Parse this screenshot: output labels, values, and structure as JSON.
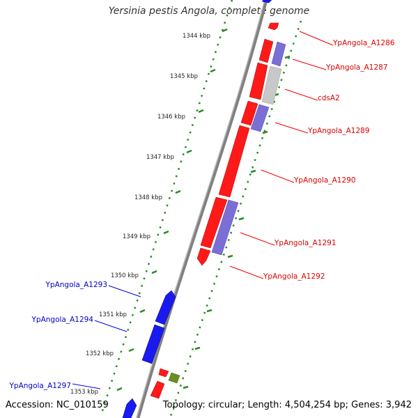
{
  "header": {
    "title": "Yersinia pestis Angola, complete genome"
  },
  "footer": {
    "accession": "Accession: NC_010159",
    "topology": "Topology: circular; Length: 4,504,254 bp; Genes: 3,942"
  },
  "colors": {
    "forward_gene": "#ff1a1a",
    "reverse_gene": "#1a1aee",
    "forward_label": "#dd0000",
    "reverse_label": "#0000cc",
    "cds_purple": "#7b6fd6",
    "pseudo_gray": "#c8c8c8",
    "rna_olive": "#6b8e23",
    "backbone": "#808080",
    "tick": "#228b22"
  },
  "scale": {
    "unit": "kbp",
    "ticks": [
      {
        "label": "1344 kbp"
      },
      {
        "label": "1345 kbp"
      },
      {
        "label": "1346 kbp"
      },
      {
        "label": "1347 kbp"
      },
      {
        "label": "1348 kbp"
      },
      {
        "label": "1349 kbp"
      },
      {
        "label": "1350 kbp"
      },
      {
        "label": "1351 kbp"
      },
      {
        "label": "1352 kbp"
      },
      {
        "label": "1353 kbp"
      }
    ]
  },
  "forward_labels": [
    {
      "text": "YpAngola_A1286"
    },
    {
      "text": "YpAngola_A1287"
    },
    {
      "text": "cdsA2"
    },
    {
      "text": "YpAngola_A1289"
    },
    {
      "text": "YpAngola_A1290"
    },
    {
      "text": "YpAngola_A1291"
    },
    {
      "text": "YpAngola_A1292"
    }
  ],
  "reverse_labels": [
    {
      "text": "YpAngola_A1293"
    },
    {
      "text": "YpAngola_A1294"
    },
    {
      "text": "YpAngola_A1297"
    }
  ]
}
